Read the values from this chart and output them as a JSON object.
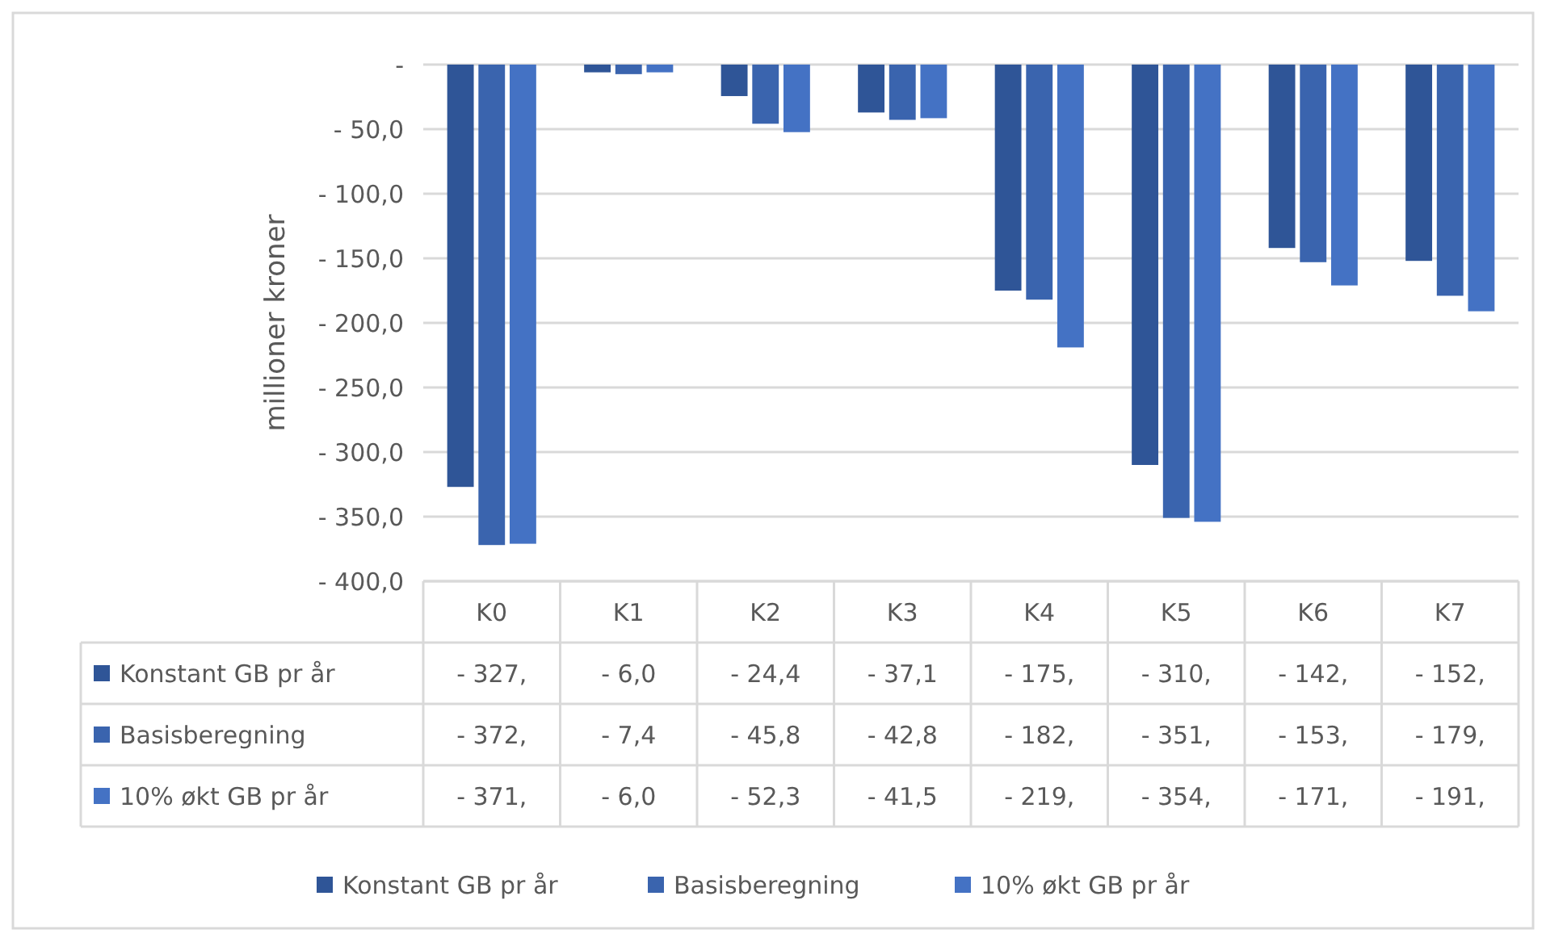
{
  "chart_data": {
    "type": "bar",
    "ylabel": "millioner kroner",
    "categories": [
      "K0",
      "K1",
      "K2",
      "K3",
      "K4",
      "K5",
      "K6",
      "K7"
    ],
    "series": [
      {
        "name": "Konstant GB pr år",
        "color": "#2f5597",
        "values": [
          -327,
          -6.0,
          -24.4,
          -37.1,
          -175,
          -310,
          -142,
          -152
        ],
        "value_labels": [
          "- 327,",
          "- 6,0",
          "- 24,4",
          "- 37,1",
          "- 175,",
          "- 310,",
          "- 142,",
          "- 152,"
        ]
      },
      {
        "name": "Basisberegning",
        "color": "#3a64ae",
        "values": [
          -372,
          -7.4,
          -45.8,
          -42.8,
          -182,
          -351,
          -153,
          -179
        ],
        "value_labels": [
          "- 372,",
          "- 7,4",
          "- 45,8",
          "- 42,8",
          "- 182,",
          "- 351,",
          "- 153,",
          "- 179,"
        ]
      },
      {
        "name": "10% økt GB pr år",
        "color": "#4472c4",
        "values": [
          -371,
          -6.0,
          -52.3,
          -41.5,
          -219,
          -354,
          -171,
          -191
        ],
        "value_labels": [
          "- 371,",
          "- 6,0",
          "- 52,3",
          "- 41,5",
          "- 219,",
          "- 354,",
          "- 171,",
          "- 191,"
        ]
      }
    ],
    "ylim": [
      -400,
      0
    ],
    "yticks": [
      {
        "value": 0,
        "label": "-"
      },
      {
        "value": -50,
        "label": "- 50,0"
      },
      {
        "value": -100,
        "label": "- 100,0"
      },
      {
        "value": -150,
        "label": "- 150,0"
      },
      {
        "value": -200,
        "label": "- 200,0"
      },
      {
        "value": -250,
        "label": "- 250,0"
      },
      {
        "value": -300,
        "label": "- 300,0"
      },
      {
        "value": -350,
        "label": "- 350,0"
      },
      {
        "value": -400,
        "label": "- 400,0"
      }
    ],
    "grid": "y",
    "legend": "bottom"
  }
}
